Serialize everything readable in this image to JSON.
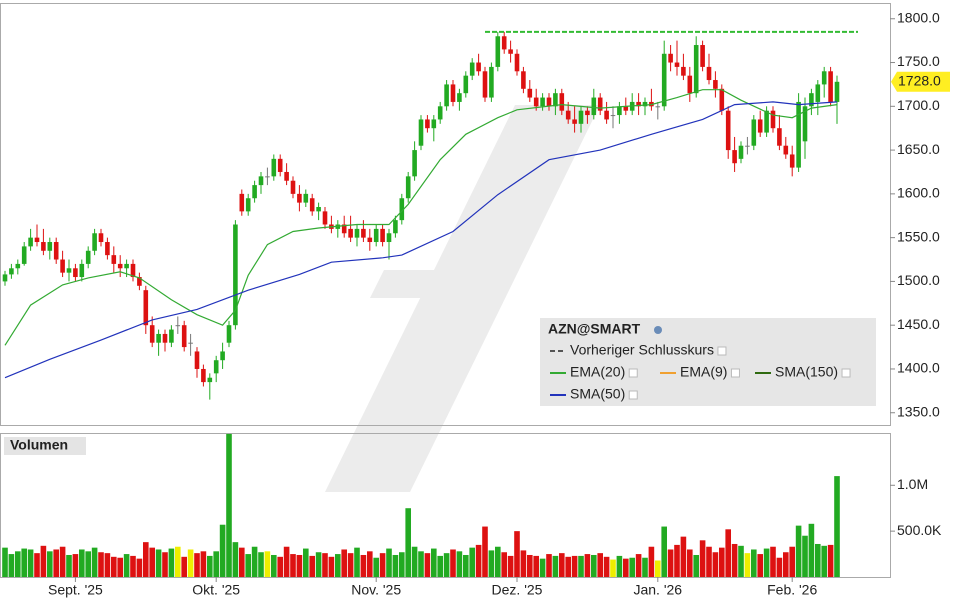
{
  "chart_data": {
    "type": "candlestick",
    "title": "AZN@SMART",
    "up_color": "#22aa22",
    "down_color": "#dd1111",
    "flat_color": "#eeee00",
    "candles": [
      [
        1500,
        1512,
        1495,
        1508
      ],
      [
        1508,
        1520,
        1503,
        1515
      ],
      [
        1515,
        1525,
        1508,
        1520
      ],
      [
        1520,
        1545,
        1518,
        1540
      ],
      [
        1540,
        1560,
        1535,
        1550
      ],
      [
        1550,
        1565,
        1540,
        1545
      ],
      [
        1545,
        1560,
        1530,
        1535
      ],
      [
        1535,
        1550,
        1525,
        1545
      ],
      [
        1545,
        1550,
        1520,
        1525
      ],
      [
        1525,
        1535,
        1505,
        1510
      ],
      [
        1510,
        1525,
        1500,
        1515
      ],
      [
        1515,
        1520,
        1500,
        1505
      ],
      [
        1505,
        1525,
        1500,
        1520
      ],
      [
        1520,
        1540,
        1515,
        1535
      ],
      [
        1535,
        1560,
        1530,
        1555
      ],
      [
        1555,
        1560,
        1540,
        1545
      ],
      [
        1545,
        1550,
        1525,
        1530
      ],
      [
        1530,
        1540,
        1510,
        1520
      ],
      [
        1520,
        1530,
        1505,
        1515
      ],
      [
        1515,
        1525,
        1505,
        1520
      ],
      [
        1520,
        1525,
        1500,
        1505
      ],
      [
        1505,
        1510,
        1490,
        1495
      ],
      [
        1490,
        1495,
        1440,
        1450
      ],
      [
        1450,
        1460,
        1425,
        1430
      ],
      [
        1430,
        1445,
        1415,
        1440
      ],
      [
        1440,
        1445,
        1420,
        1430
      ],
      [
        1430,
        1450,
        1425,
        1445
      ],
      [
        1450,
        1460,
        1440,
        1450
      ],
      [
        1450,
        1455,
        1420,
        1425
      ],
      [
        1430,
        1440,
        1415,
        1430
      ],
      [
        1420,
        1425,
        1390,
        1400
      ],
      [
        1400,
        1405,
        1380,
        1385
      ],
      [
        1385,
        1395,
        1365,
        1390
      ],
      [
        1395,
        1415,
        1385,
        1410
      ],
      [
        1410,
        1430,
        1400,
        1420
      ],
      [
        1430,
        1455,
        1425,
        1450
      ],
      [
        1450,
        1570,
        1445,
        1565
      ],
      [
        1600,
        1605,
        1575,
        1580
      ],
      [
        1580,
        1600,
        1575,
        1595
      ],
      [
        1595,
        1615,
        1590,
        1610
      ],
      [
        1610,
        1625,
        1600,
        1620
      ],
      [
        1620,
        1630,
        1610,
        1620
      ],
      [
        1620,
        1645,
        1615,
        1640
      ],
      [
        1640,
        1645,
        1620,
        1625
      ],
      [
        1625,
        1635,
        1610,
        1615
      ],
      [
        1615,
        1620,
        1595,
        1600
      ],
      [
        1600,
        1610,
        1580,
        1590
      ],
      [
        1590,
        1605,
        1585,
        1600
      ],
      [
        1595,
        1600,
        1575,
        1580
      ],
      [
        1580,
        1590,
        1570,
        1585
      ],
      [
        1580,
        1585,
        1560,
        1565
      ],
      [
        1565,
        1575,
        1555,
        1560
      ],
      [
        1560,
        1570,
        1550,
        1565
      ],
      [
        1565,
        1575,
        1550,
        1555
      ],
      [
        1560,
        1575,
        1545,
        1550
      ],
      [
        1550,
        1565,
        1540,
        1560
      ],
      [
        1560,
        1570,
        1545,
        1550
      ],
      [
        1550,
        1560,
        1535,
        1545
      ],
      [
        1545,
        1565,
        1540,
        1560
      ],
      [
        1560,
        1565,
        1540,
        1545
      ],
      [
        1545,
        1560,
        1525,
        1555
      ],
      [
        1555,
        1575,
        1550,
        1570
      ],
      [
        1570,
        1600,
        1565,
        1595
      ],
      [
        1595,
        1625,
        1590,
        1620
      ],
      [
        1620,
        1660,
        1615,
        1650
      ],
      [
        1655,
        1690,
        1650,
        1685
      ],
      [
        1685,
        1690,
        1670,
        1675
      ],
      [
        1675,
        1690,
        1660,
        1685
      ],
      [
        1685,
        1705,
        1680,
        1700
      ],
      [
        1700,
        1730,
        1695,
        1725
      ],
      [
        1725,
        1730,
        1700,
        1705
      ],
      [
        1705,
        1720,
        1695,
        1715
      ],
      [
        1715,
        1740,
        1710,
        1735
      ],
      [
        1735,
        1755,
        1730,
        1750
      ],
      [
        1750,
        1760,
        1735,
        1740
      ],
      [
        1740,
        1745,
        1705,
        1710
      ],
      [
        1710,
        1750,
        1705,
        1745
      ],
      [
        1745,
        1785,
        1740,
        1780
      ],
      [
        1780,
        1785,
        1760,
        1765
      ],
      [
        1765,
        1775,
        1750,
        1760
      ],
      [
        1760,
        1765,
        1735,
        1740
      ],
      [
        1740,
        1745,
        1715,
        1720
      ],
      [
        1720,
        1730,
        1705,
        1710
      ],
      [
        1710,
        1720,
        1695,
        1700
      ],
      [
        1700,
        1715,
        1695,
        1710
      ],
      [
        1710,
        1715,
        1695,
        1700
      ],
      [
        1700,
        1720,
        1690,
        1715
      ],
      [
        1715,
        1720,
        1690,
        1695
      ],
      [
        1695,
        1705,
        1680,
        1685
      ],
      [
        1685,
        1700,
        1670,
        1680
      ],
      [
        1680,
        1700,
        1670,
        1695
      ],
      [
        1695,
        1700,
        1680,
        1690
      ],
      [
        1690,
        1720,
        1685,
        1710
      ],
      [
        1710,
        1715,
        1690,
        1695
      ],
      [
        1695,
        1705,
        1680,
        1685
      ],
      [
        1690,
        1700,
        1675,
        1690
      ],
      [
        1690,
        1705,
        1680,
        1700
      ],
      [
        1700,
        1710,
        1690,
        1695
      ],
      [
        1695,
        1715,
        1690,
        1705
      ],
      [
        1705,
        1715,
        1690,
        1700
      ],
      [
        1700,
        1710,
        1690,
        1705
      ],
      [
        1705,
        1720,
        1695,
        1700
      ],
      [
        1700,
        1705,
        1685,
        1700
      ],
      [
        1700,
        1775,
        1695,
        1760
      ],
      [
        1760,
        1770,
        1740,
        1750
      ],
      [
        1750,
        1775,
        1735,
        1745
      ],
      [
        1745,
        1760,
        1730,
        1735
      ],
      [
        1735,
        1745,
        1705,
        1715
      ],
      [
        1715,
        1780,
        1710,
        1770
      ],
      [
        1770,
        1775,
        1740,
        1745
      ],
      [
        1745,
        1760,
        1725,
        1730
      ],
      [
        1730,
        1740,
        1710,
        1720
      ],
      [
        1720,
        1725,
        1690,
        1695
      ],
      [
        1695,
        1700,
        1640,
        1650
      ],
      [
        1650,
        1665,
        1625,
        1635
      ],
      [
        1640,
        1660,
        1635,
        1655
      ],
      [
        1655,
        1665,
        1645,
        1655
      ],
      [
        1655,
        1690,
        1650,
        1685
      ],
      [
        1685,
        1695,
        1665,
        1670
      ],
      [
        1670,
        1700,
        1665,
        1695
      ],
      [
        1695,
        1700,
        1670,
        1675
      ],
      [
        1675,
        1690,
        1650,
        1655
      ],
      [
        1655,
        1665,
        1640,
        1645
      ],
      [
        1645,
        1655,
        1620,
        1630
      ],
      [
        1630,
        1715,
        1625,
        1705
      ],
      [
        1660,
        1710,
        1640,
        1700
      ],
      [
        1700,
        1720,
        1690,
        1715
      ],
      [
        1705,
        1730,
        1690,
        1725
      ],
      [
        1725,
        1745,
        1710,
        1740
      ],
      [
        1740,
        1745,
        1700,
        1705
      ],
      [
        1705,
        1735,
        1680,
        1728
      ]
    ],
    "ylim": [
      1336,
      1818
    ],
    "yticks": [
      {
        "value": 1350,
        "label": "1350.0"
      },
      {
        "value": 1400,
        "label": "1400.0"
      },
      {
        "value": 1450,
        "label": "1450.0"
      },
      {
        "value": 1500,
        "label": "1500.0"
      },
      {
        "value": 1550,
        "label": "1550.0"
      },
      {
        "value": 1600,
        "label": "1600.0"
      },
      {
        "value": 1650,
        "label": "1650.0"
      },
      {
        "value": 1700,
        "label": "1700.0"
      },
      {
        "value": 1750,
        "label": "1750.0"
      },
      {
        "value": 1800,
        "label": "1800.0"
      }
    ],
    "last_price": {
      "value": 1728,
      "label": "1728.0"
    },
    "reference_line": {
      "value": 1785,
      "start": 75,
      "color": "#33bb33"
    },
    "series": [
      {
        "name": "EMA(20)",
        "color": "#33aa33",
        "x": [
          0,
          4,
          9,
          13,
          18,
          21,
          26,
          30,
          34,
          36,
          38,
          41,
          45,
          49,
          55,
          60,
          63,
          68,
          72,
          77,
          80,
          87,
          93,
          101,
          105,
          109,
          112,
          115,
          120,
          123,
          126,
          130
        ],
        "values": [
          1427,
          1473,
          1496,
          1504,
          1511,
          1504,
          1479,
          1462,
          1450,
          1467,
          1507,
          1542,
          1557,
          1561,
          1565,
          1565,
          1588,
          1639,
          1668,
          1687,
          1696,
          1702,
          1698,
          1702,
          1710,
          1719,
          1719,
          1707,
          1690,
          1687,
          1698,
          1702
        ]
      },
      {
        "name": "SMA(50)",
        "color": "#2233bb",
        "x": [
          0,
          7,
          15,
          23,
          30,
          38,
          46,
          51,
          59,
          62,
          70,
          77,
          85,
          93,
          101,
          109,
          114,
          120,
          124,
          130
        ],
        "values": [
          1390,
          1411,
          1433,
          1456,
          1468,
          1490,
          1508,
          1522,
          1527,
          1530,
          1557,
          1599,
          1639,
          1650,
          1668,
          1685,
          1702,
          1705,
          1702,
          1705
        ]
      }
    ],
    "legend": [
      {
        "name": "Vorheriger Schlusskurs",
        "color": "#555555",
        "dashed": true
      },
      {
        "name": "EMA(20)",
        "color": "#33aa33"
      },
      {
        "name": "EMA(9)",
        "color": "#f0a030"
      },
      {
        "name": "SMA(150)",
        "color": "#2f6a10"
      },
      {
        "name": "SMA(50)",
        "color": "#2233bb"
      }
    ],
    "volume_title": "Volumen",
    "volumes": [
      320000,
      250000,
      280000,
      310000,
      300000,
      260000,
      340000,
      280000,
      300000,
      330000,
      240000,
      250000,
      300000,
      280000,
      320000,
      270000,
      260000,
      220000,
      210000,
      250000,
      230000,
      200000,
      380000,
      320000,
      300000,
      270000,
      310000,
      330000,
      220000,
      300000,
      260000,
      280000,
      230000,
      280000,
      570000,
      1560000,
      380000,
      320000,
      250000,
      330000,
      270000,
      280000,
      240000,
      220000,
      330000,
      250000,
      240000,
      310000,
      230000,
      270000,
      260000,
      220000,
      250000,
      300000,
      260000,
      320000,
      240000,
      280000,
      210000,
      260000,
      310000,
      240000,
      270000,
      750000,
      330000,
      280000,
      260000,
      310000,
      230000,
      260000,
      300000,
      280000,
      240000,
      320000,
      350000,
      550000,
      290000,
      330000,
      270000,
      230000,
      500000,
      290000,
      240000,
      230000,
      200000,
      250000,
      230000,
      260000,
      220000,
      230000,
      230000,
      250000,
      240000,
      260000,
      220000,
      190000,
      230000,
      200000,
      210000,
      250000,
      210000,
      330000,
      180000,
      550000,
      300000,
      350000,
      440000,
      300000,
      240000,
      400000,
      330000,
      270000,
      320000,
      520000,
      360000,
      340000,
      260000,
      300000,
      250000,
      310000,
      330000,
      210000,
      270000,
      330000,
      560000,
      450000,
      580000,
      360000,
      340000,
      350000,
      1100000
    ],
    "volume_ylim": [
      0,
      1570000
    ],
    "volume_yticks": [
      {
        "value": 500000,
        "label": "500.0K"
      },
      {
        "value": 1000000,
        "label": "1.0M"
      }
    ],
    "xticks": [
      {
        "value": 11,
        "label": "Sept. '25"
      },
      {
        "value": 33,
        "label": "Okt. '25"
      },
      {
        "value": 58,
        "label": "Nov. '25"
      },
      {
        "value": 80,
        "label": "Dez. '25"
      },
      {
        "value": 102,
        "label": "Jan. '26"
      },
      {
        "value": 123,
        "label": "Feb. '26"
      }
    ]
  }
}
